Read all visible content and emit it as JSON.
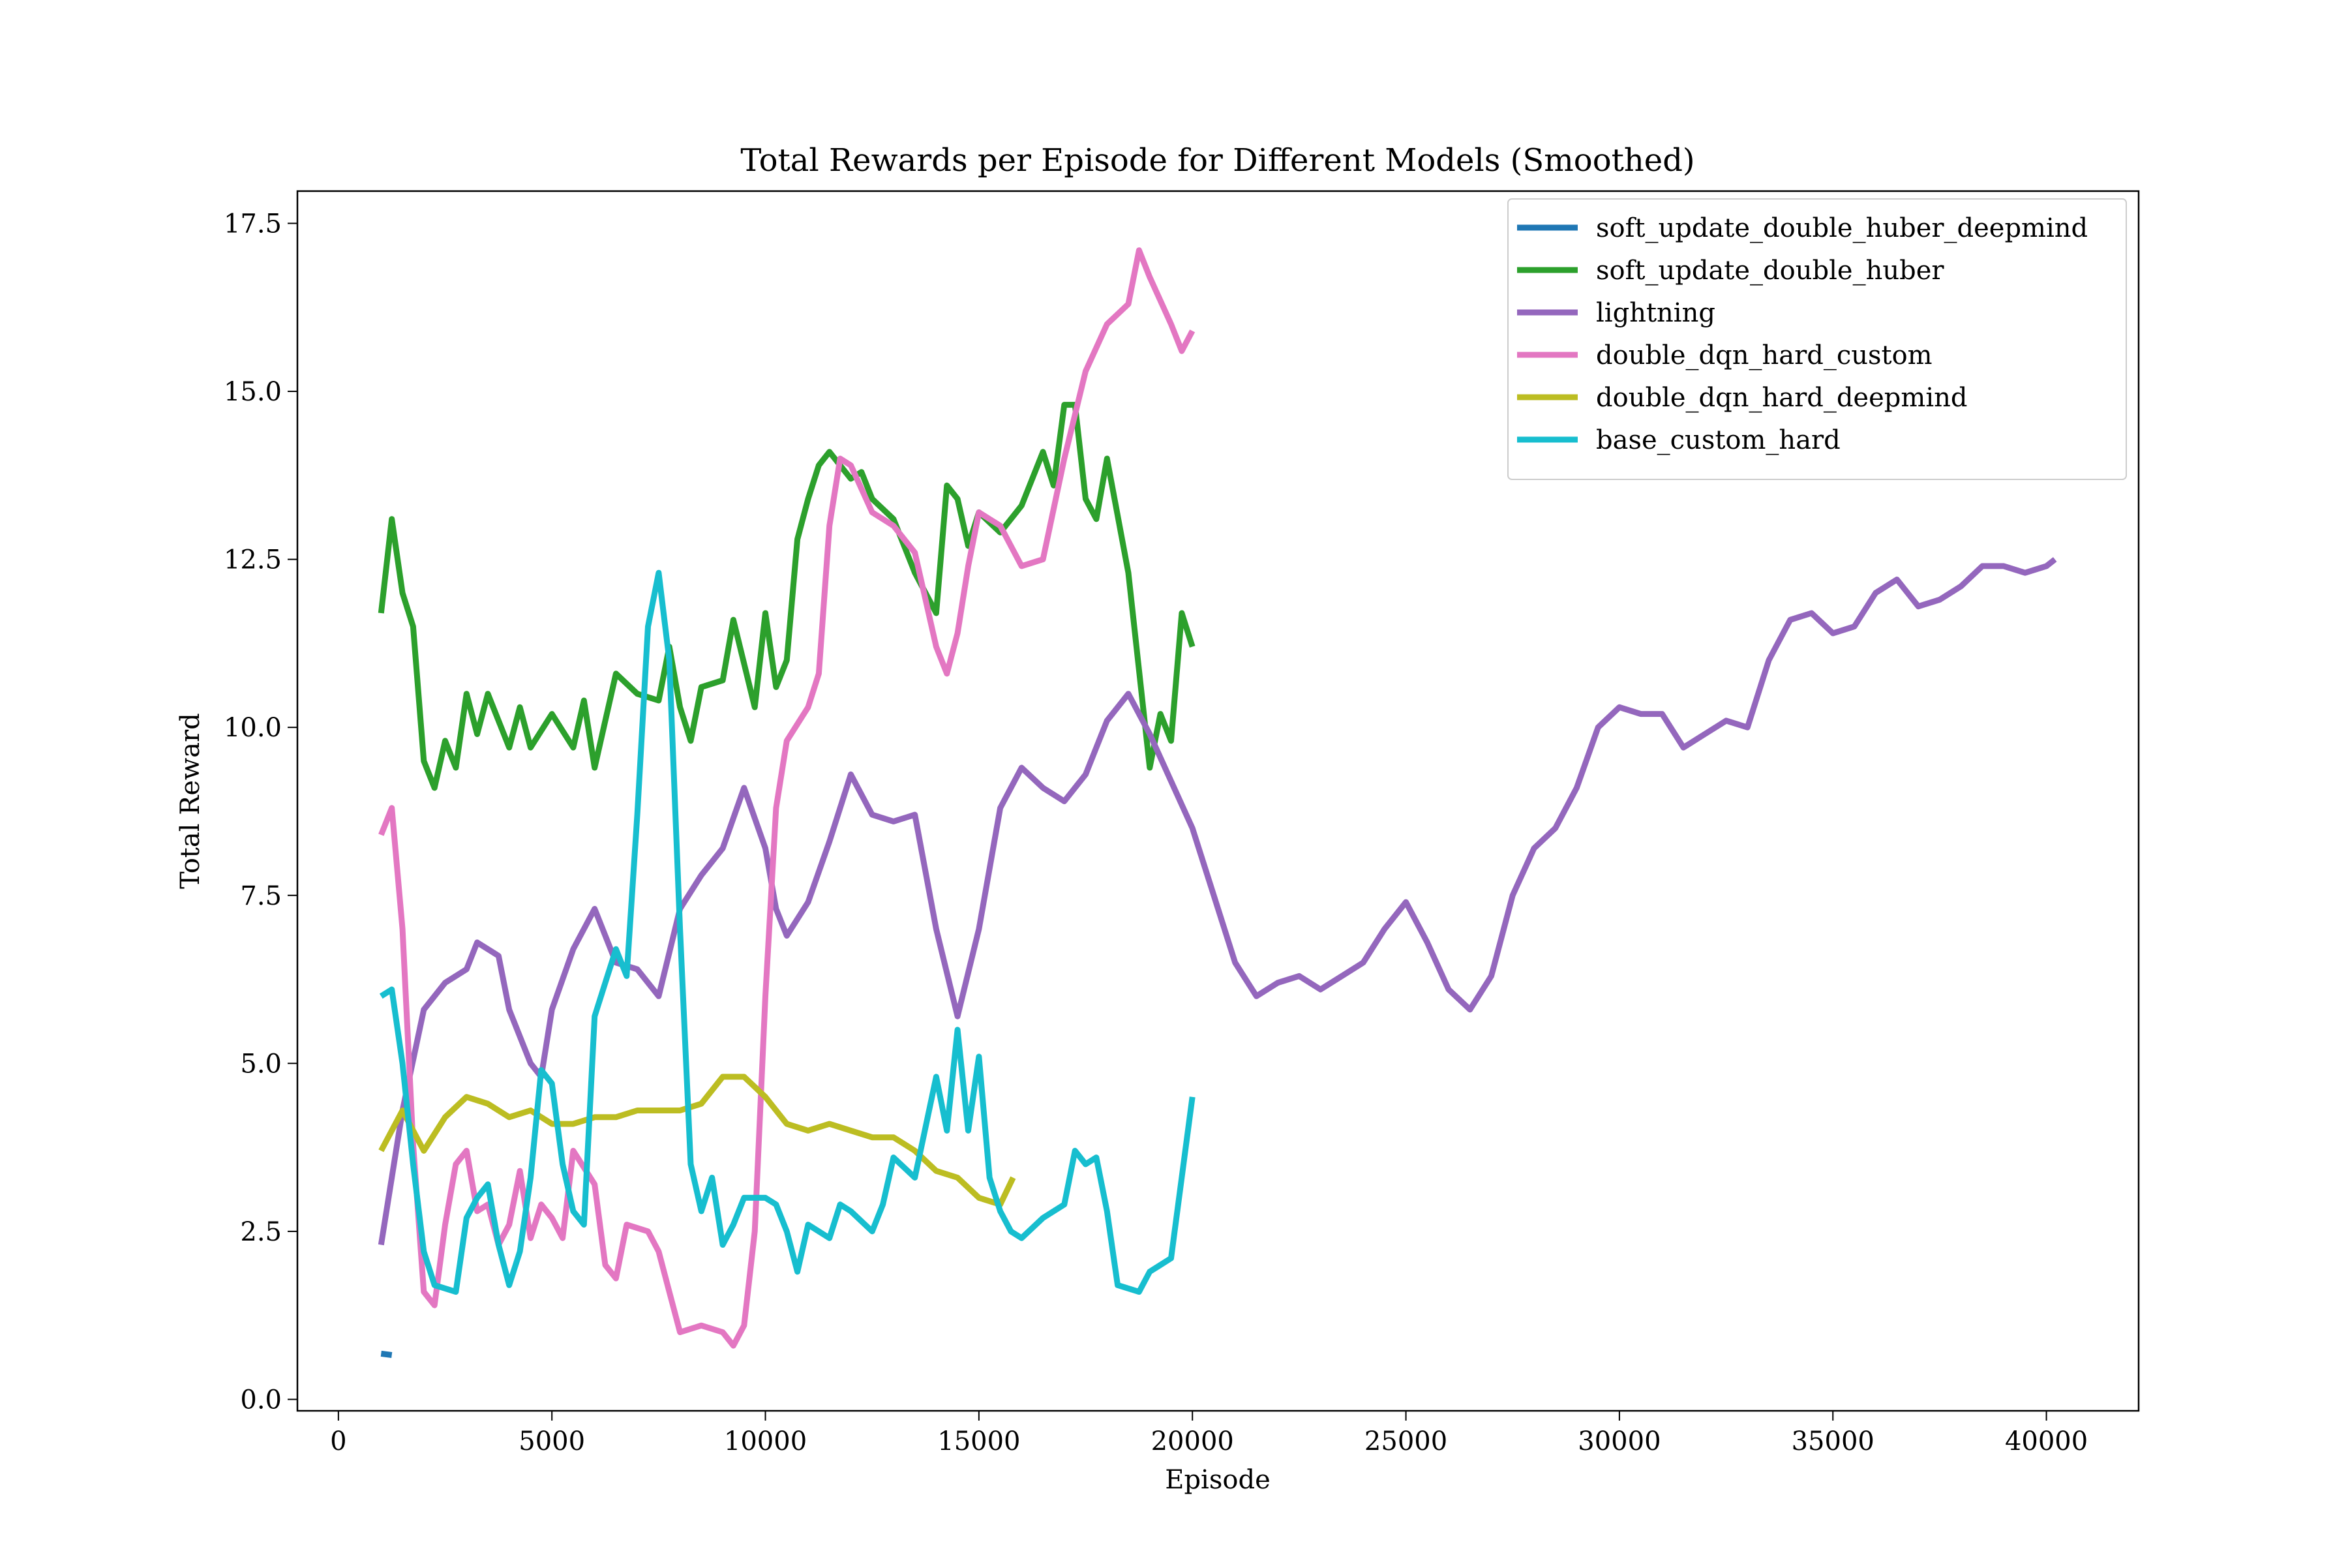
{
  "chart_data": {
    "type": "line",
    "title": "Total Rewards per Episode for Different Models (Smoothed)",
    "x_label": "Episode",
    "y_label": "Total Reward",
    "xlim": [
      -960,
      42160
    ],
    "ylim": [
      -0.17,
      17.98
    ],
    "xticks": [
      0,
      5000,
      10000,
      15000,
      20000,
      25000,
      30000,
      35000,
      40000
    ],
    "yticks": [
      {
        "value": 0,
        "label": "0.0"
      },
      2.5,
      {
        "value": 5,
        "label": "5.0"
      },
      7.5,
      {
        "value": 10,
        "label": "10.0"
      },
      12.5,
      {
        "value": 15,
        "label": "15.0"
      },
      17.5
    ],
    "legend": "upper right",
    "grid": false,
    "series": [
      {
        "name": "soft_update_double_huber_deepmind",
        "color": "#1f77b4",
        "x": [
          1000,
          1250
        ],
        "values": [
          0.68,
          0.66
        ]
      },
      {
        "name": "soft_update_double_huber",
        "color": "#2ca02c",
        "x": [
          1000,
          1250,
          1500,
          1750,
          2000,
          2250,
          2500,
          2750,
          3000,
          3250,
          3500,
          4000,
          4250,
          4500,
          5000,
          5500,
          5750,
          6000,
          6500,
          7000,
          7500,
          7750,
          8000,
          8250,
          8500,
          9000,
          9250,
          9750,
          10000,
          10250,
          10500,
          10750,
          11000,
          11250,
          11500,
          12000,
          12250,
          12500,
          13000,
          13500,
          14000,
          14250,
          14500,
          14750,
          15000,
          15500,
          16000,
          16500,
          16750,
          17000,
          17250,
          17500,
          17750,
          18000,
          18500,
          19000,
          19250,
          19500,
          19750,
          20000
        ],
        "values": [
          11.7,
          13.1,
          12.0,
          11.5,
          9.5,
          9.1,
          9.8,
          9.4,
          10.5,
          9.9,
          10.5,
          9.7,
          10.3,
          9.7,
          10.2,
          9.7,
          10.4,
          9.4,
          10.8,
          10.5,
          10.4,
          11.2,
          10.3,
          9.8,
          10.6,
          10.7,
          11.6,
          10.3,
          11.7,
          10.6,
          11.0,
          12.8,
          13.4,
          13.9,
          14.1,
          13.7,
          13.8,
          13.4,
          13.1,
          12.3,
          11.7,
          13.6,
          13.4,
          12.7,
          13.2,
          12.9,
          13.3,
          14.1,
          13.6,
          14.8,
          14.8,
          13.4,
          13.1,
          14.0,
          12.3,
          9.4,
          10.2,
          9.8,
          11.7,
          11.2
        ]
      },
      {
        "name": "lightning",
        "color": "#9467bd",
        "x": [
          1000,
          1500,
          2000,
          2500,
          3000,
          3250,
          3500,
          3750,
          4000,
          4500,
          4750,
          5000,
          5500,
          6000,
          6500,
          7000,
          7500,
          8000,
          8500,
          9000,
          9500,
          10000,
          10250,
          10500,
          11000,
          11500,
          12000,
          12500,
          13000,
          13500,
          14000,
          14500,
          15000,
          15500,
          16000,
          16500,
          17000,
          17500,
          18000,
          18500,
          19000,
          19500,
          20000,
          20500,
          21000,
          21500,
          22000,
          22500,
          23000,
          23500,
          24000,
          24500,
          25000,
          25500,
          26000,
          26500,
          27000,
          27500,
          28000,
          28500,
          29000,
          29500,
          30000,
          30500,
          31000,
          31500,
          32000,
          32500,
          33000,
          33500,
          34000,
          34500,
          35000,
          35500,
          36000,
          36500,
          37000,
          37500,
          38000,
          38500,
          39000,
          39500,
          40000,
          40200
        ],
        "values": [
          2.3,
          4.3,
          5.8,
          6.2,
          6.4,
          6.8,
          6.7,
          6.6,
          5.8,
          5.0,
          4.8,
          5.8,
          6.7,
          7.3,
          6.5,
          6.4,
          6.0,
          7.3,
          7.8,
          8.2,
          9.1,
          8.2,
          7.3,
          6.9,
          7.4,
          8.3,
          9.3,
          8.7,
          8.6,
          8.7,
          7.0,
          5.7,
          7.0,
          8.8,
          9.4,
          9.1,
          8.9,
          9.3,
          10.1,
          10.5,
          9.9,
          9.2,
          8.5,
          7.5,
          6.5,
          6.0,
          6.2,
          6.3,
          6.1,
          6.3,
          6.5,
          7.0,
          7.4,
          6.8,
          6.1,
          5.8,
          6.3,
          7.5,
          8.2,
          8.5,
          9.1,
          10.0,
          10.3,
          10.2,
          10.2,
          9.7,
          9.9,
          10.1,
          10.0,
          11.0,
          11.6,
          11.7,
          11.4,
          11.5,
          12.0,
          12.2,
          11.8,
          11.9,
          12.1,
          12.4,
          12.4,
          12.3,
          12.4,
          12.5
        ]
      },
      {
        "name": "double_dqn_hard_custom",
        "color": "#e377c2",
        "x": [
          1000,
          1250,
          1500,
          1750,
          2000,
          2250,
          2500,
          2750,
          3000,
          3250,
          3500,
          3750,
          4000,
          4250,
          4500,
          4750,
          5000,
          5250,
          5500,
          6000,
          6250,
          6500,
          6750,
          7250,
          7500,
          7750,
          8000,
          8500,
          9000,
          9250,
          9500,
          9750,
          10000,
          10250,
          10500,
          11000,
          11250,
          11500,
          11750,
          12000,
          12500,
          13000,
          13500,
          14000,
          14250,
          14500,
          14750,
          15000,
          15500,
          16000,
          16500,
          17000,
          17500,
          18000,
          18500,
          18750,
          19000,
          19500,
          19750,
          20000
        ],
        "values": [
          8.4,
          8.8,
          7.0,
          3.8,
          1.6,
          1.4,
          2.6,
          3.5,
          3.7,
          2.8,
          2.9,
          2.3,
          2.6,
          3.4,
          2.4,
          2.9,
          2.7,
          2.4,
          3.7,
          3.2,
          2.0,
          1.8,
          2.6,
          2.5,
          2.2,
          1.6,
          1.0,
          1.1,
          1.0,
          0.8,
          1.1,
          2.5,
          6.0,
          8.8,
          9.8,
          10.3,
          10.8,
          13.0,
          14.0,
          13.9,
          13.2,
          13.0,
          12.6,
          11.2,
          10.8,
          11.4,
          12.4,
          13.2,
          13.0,
          12.4,
          12.5,
          14.0,
          15.3,
          16.0,
          16.3,
          17.1,
          16.7,
          16.0,
          15.6,
          15.9
        ]
      },
      {
        "name": "double_dqn_hard_deepmind",
        "color": "#bcbd22",
        "x": [
          1000,
          1500,
          2000,
          2500,
          3000,
          3500,
          4000,
          4500,
          5000,
          5500,
          6000,
          6500,
          7000,
          7500,
          8000,
          8500,
          9000,
          9500,
          10000,
          10500,
          11000,
          11500,
          12000,
          12500,
          13000,
          13500,
          14000,
          14500,
          15000,
          15500,
          15800
        ],
        "values": [
          3.7,
          4.3,
          3.7,
          4.2,
          4.5,
          4.4,
          4.2,
          4.3,
          4.1,
          4.1,
          4.2,
          4.2,
          4.3,
          4.3,
          4.3,
          4.4,
          4.8,
          4.8,
          4.5,
          4.1,
          4.0,
          4.1,
          4.0,
          3.9,
          3.9,
          3.7,
          3.4,
          3.3,
          3.0,
          2.9,
          3.3
        ]
      },
      {
        "name": "base_custom_hard",
        "color": "#17becf",
        "x": [
          1000,
          1250,
          1500,
          1750,
          2000,
          2250,
          2750,
          3000,
          3250,
          3500,
          3750,
          4000,
          4250,
          4500,
          4750,
          5000,
          5250,
          5500,
          5750,
          6000,
          6250,
          6500,
          6750,
          7000,
          7250,
          7500,
          7750,
          8000,
          8250,
          8500,
          8750,
          9000,
          9250,
          9500,
          10000,
          10250,
          10500,
          10750,
          11000,
          11500,
          11750,
          12000,
          12500,
          12750,
          13000,
          13500,
          14000,
          14250,
          14500,
          14750,
          15000,
          15250,
          15500,
          15750,
          16000,
          16500,
          17000,
          17250,
          17500,
          17750,
          18000,
          18250,
          18750,
          19000,
          19500,
          20000
        ],
        "values": [
          6.0,
          6.1,
          5.0,
          3.5,
          2.2,
          1.7,
          1.6,
          2.7,
          3.0,
          3.2,
          2.3,
          1.7,
          2.2,
          3.3,
          4.9,
          4.7,
          3.5,
          2.8,
          2.6,
          5.7,
          6.2,
          6.7,
          6.3,
          8.7,
          11.5,
          12.3,
          11.0,
          7.0,
          3.5,
          2.8,
          3.3,
          2.3,
          2.6,
          3.0,
          3.0,
          2.9,
          2.5,
          1.9,
          2.6,
          2.4,
          2.9,
          2.8,
          2.5,
          2.9,
          3.6,
          3.3,
          4.8,
          4.0,
          5.5,
          4.0,
          5.1,
          3.3,
          2.8,
          2.5,
          2.4,
          2.7,
          2.9,
          3.7,
          3.5,
          3.6,
          2.8,
          1.7,
          1.6,
          1.9,
          2.1,
          4.5
        ]
      }
    ]
  }
}
